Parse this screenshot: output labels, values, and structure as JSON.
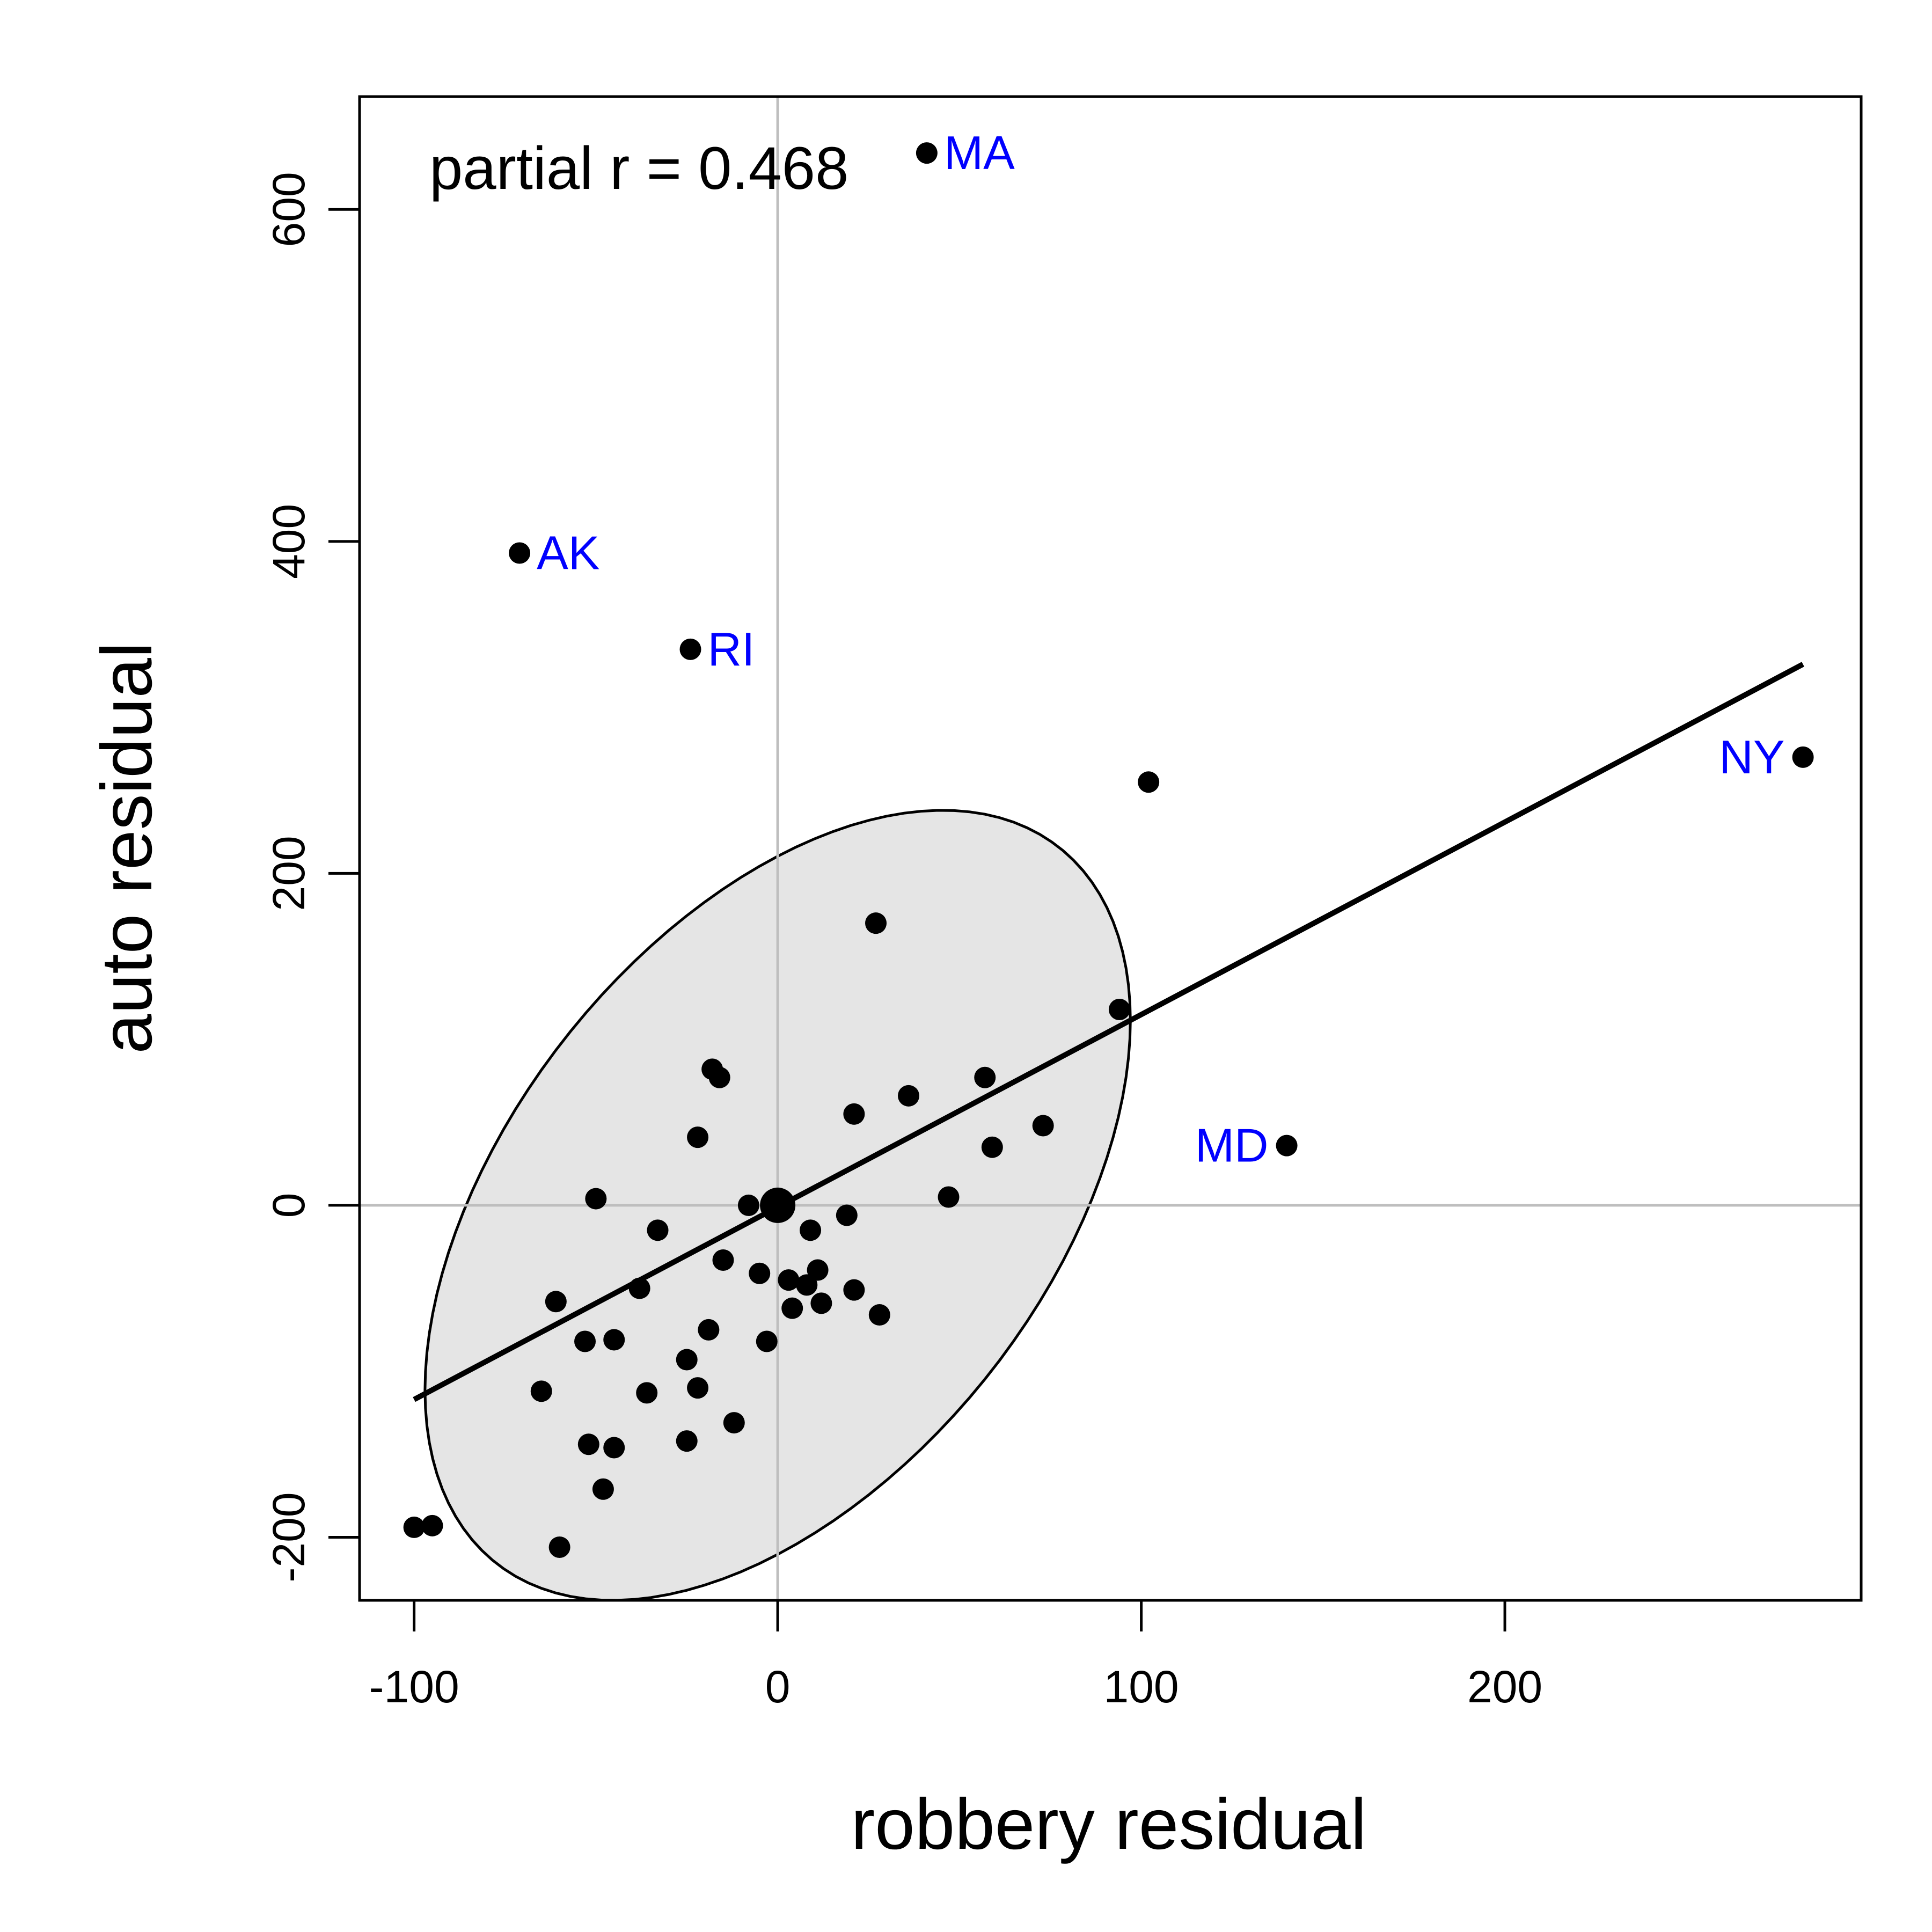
{
  "chart_data": {
    "type": "scatter",
    "xlabel": "robbery residual",
    "ylabel": "auto residual",
    "xlim": [
      -115,
      298
    ],
    "ylim": [
      -238,
      668
    ],
    "xticks": [
      -100,
      0,
      100,
      200
    ],
    "yticks": [
      -200,
      0,
      200,
      400,
      600
    ],
    "grid": false,
    "reference_lines": {
      "x": 0,
      "y": 0,
      "color": "#bebebe"
    },
    "annotation": "partial r = 0.468",
    "colors": {
      "points": "#000000",
      "labels": "#0000ff",
      "ellipse_fill": "#e5e5e5",
      "reference_lines": "#bebebe"
    },
    "regression_line": {
      "x": [
        -100,
        282
      ],
      "y": [
        -117,
        326
      ]
    },
    "centroid": {
      "x": 0,
      "y": 0
    },
    "ellipse": {
      "center": [
        0,
        0
      ],
      "x_range": [
        -97,
        97
      ],
      "y_range": [
        -238,
        238
      ]
    },
    "points": [
      {
        "x": -71,
        "y": 393,
        "label": "AK"
      },
      {
        "x": 41,
        "y": 634,
        "label": "MA"
      },
      {
        "x": -24,
        "y": 335,
        "label": "RI"
      },
      {
        "x": 282,
        "y": 270,
        "label": "NY"
      },
      {
        "x": 140,
        "y": 36,
        "label": "MD"
      },
      {
        "x": 102,
        "y": 255
      },
      {
        "x": 27,
        "y": 170
      },
      {
        "x": 94,
        "y": 118
      },
      {
        "x": -18,
        "y": 82
      },
      {
        "x": -16,
        "y": 77
      },
      {
        "x": 57,
        "y": 77
      },
      {
        "x": 36,
        "y": 66
      },
      {
        "x": 21,
        "y": 55
      },
      {
        "x": 73,
        "y": 48
      },
      {
        "x": -22,
        "y": 41
      },
      {
        "x": 59,
        "y": 35
      },
      {
        "x": 47,
        "y": 5
      },
      {
        "x": -50,
        "y": 4
      },
      {
        "x": -8,
        "y": 0
      },
      {
        "x": 19,
        "y": -6
      },
      {
        "x": 9,
        "y": -15
      },
      {
        "x": -33,
        "y": -15
      },
      {
        "x": -15,
        "y": -33
      },
      {
        "x": -5,
        "y": -41
      },
      {
        "x": 11,
        "y": -39
      },
      {
        "x": 3,
        "y": -45
      },
      {
        "x": 8,
        "y": -48
      },
      {
        "x": -38,
        "y": -50
      },
      {
        "x": 21,
        "y": -51
      },
      {
        "x": -61,
        "y": -58
      },
      {
        "x": 12,
        "y": -59
      },
      {
        "x": 4,
        "y": -62
      },
      {
        "x": 28,
        "y": -66
      },
      {
        "x": -19,
        "y": -75
      },
      {
        "x": -53,
        "y": -82
      },
      {
        "x": -45,
        "y": -81
      },
      {
        "x": -3,
        "y": -82
      },
      {
        "x": -25,
        "y": -93
      },
      {
        "x": -22,
        "y": -110
      },
      {
        "x": -65,
        "y": -112
      },
      {
        "x": -36,
        "y": -113
      },
      {
        "x": -12,
        "y": -131
      },
      {
        "x": -25,
        "y": -142
      },
      {
        "x": -52,
        "y": -144
      },
      {
        "x": -45,
        "y": -146
      },
      {
        "x": -48,
        "y": -171
      },
      {
        "x": -100,
        "y": -194
      },
      {
        "x": -95,
        "y": -193
      },
      {
        "x": -60,
        "y": -206
      }
    ]
  }
}
